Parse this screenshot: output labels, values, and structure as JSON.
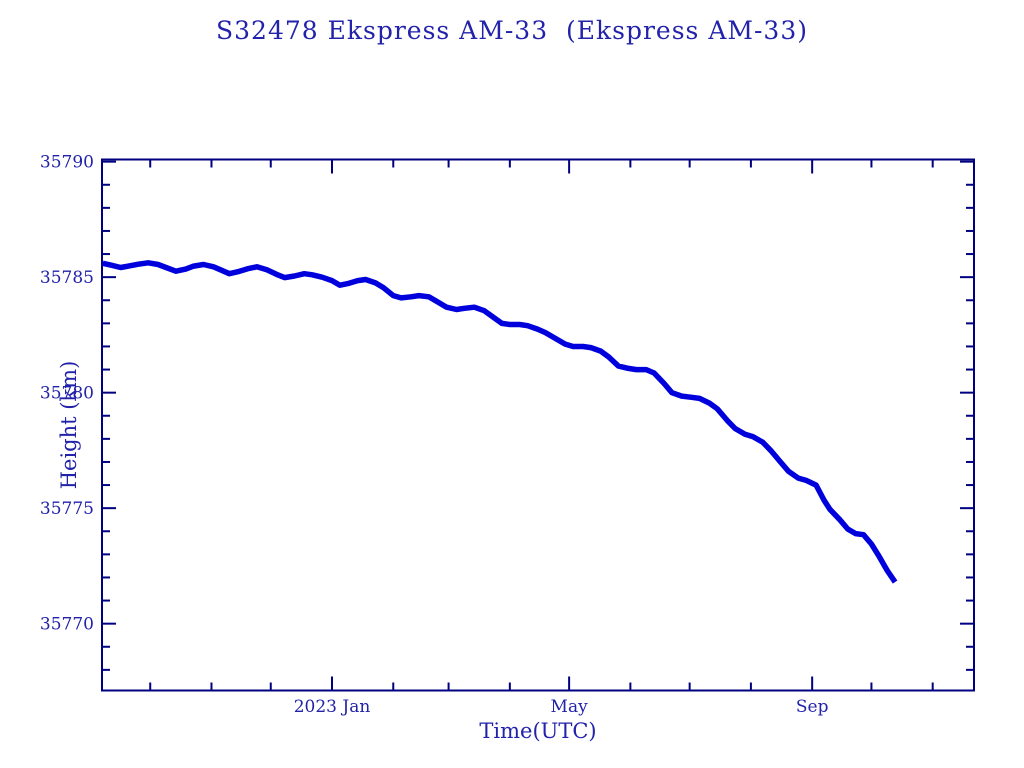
{
  "page": {
    "background": "#ffffff"
  },
  "colors": {
    "axis": "#000080",
    "labels": "#2222aa",
    "data": "#0000dd"
  },
  "chart_data": {
    "type": "scatter",
    "title": "S32478 Ekspress AM-33  (Ekspress AM-33)",
    "xlabel": "Time(UTC)",
    "ylabel": "Height (km)",
    "legend": "none",
    "grid": false,
    "x_unit": "days_from_2023-01-01",
    "x_range": [
      -115.9,
      324.4
    ],
    "y_range": [
      35767.15,
      35790.05
    ],
    "y_major_ticks": [
      {
        "v": 35770,
        "label": "35770"
      },
      {
        "v": 35775,
        "label": "35775"
      },
      {
        "v": 35780,
        "label": "35780"
      },
      {
        "v": 35785,
        "label": "35785"
      },
      {
        "v": 35790,
        "label": "35790"
      }
    ],
    "y_minor_ticks": [
      35768,
      35769,
      35771,
      35772,
      35773,
      35774,
      35776,
      35777,
      35778,
      35779,
      35781,
      35782,
      35783,
      35784,
      35786,
      35787,
      35788,
      35789
    ],
    "x_major_ticks": [
      {
        "t": 0,
        "label": "2023 Jan"
      },
      {
        "t": 120,
        "label": "May"
      },
      {
        "t": 243,
        "label": "Sep"
      }
    ],
    "x_minor_ticks": [
      -92,
      -61,
      -31,
      31,
      59,
      90,
      151,
      181,
      212,
      273,
      304
    ],
    "series": [
      {
        "name": "height",
        "color": "#0000dd",
        "x": [
          -116,
          -112,
          -107,
          -103,
          -98,
          -93,
          -88,
          -84,
          -79,
          -74,
          -70,
          -65,
          -60,
          -56,
          -52,
          -47,
          -42,
          -38,
          -33,
          -28,
          -24,
          -19,
          -14,
          -10,
          -5,
          0,
          4,
          8,
          13,
          17,
          22,
          26,
          31,
          35,
          40,
          44,
          49,
          53,
          58,
          63,
          67,
          72,
          77,
          81,
          86,
          90,
          95,
          99,
          104,
          108,
          113,
          118,
          122,
          127,
          131,
          136,
          140,
          145,
          150,
          154,
          159,
          163,
          168,
          172,
          177,
          182,
          186,
          191,
          195,
          200,
          204,
          209,
          213,
          218,
          222,
          227,
          231,
          236,
          240,
          245,
          249,
          252,
          257,
          261,
          265,
          269,
          273,
          277,
          281,
          285
        ],
        "y": [
          35785.6,
          35785.52,
          35785.42,
          35785.48,
          35785.56,
          35785.62,
          35785.55,
          35785.42,
          35785.26,
          35785.35,
          35785.48,
          35785.55,
          35785.45,
          35785.3,
          35785.15,
          35785.25,
          35785.38,
          35785.45,
          35785.32,
          35785.12,
          35784.98,
          35785.05,
          35785.15,
          35785.1,
          35785.0,
          35784.85,
          35784.65,
          35784.72,
          35784.85,
          35784.9,
          35784.75,
          35784.55,
          35784.2,
          35784.1,
          35784.15,
          35784.2,
          35784.15,
          35783.95,
          35783.7,
          35783.6,
          35783.65,
          35783.7,
          35783.55,
          35783.3,
          35783.0,
          35782.95,
          35782.95,
          35782.9,
          35782.75,
          35782.6,
          35782.35,
          35782.1,
          35782.0,
          35782.0,
          35781.95,
          35781.8,
          35781.55,
          35781.15,
          35781.05,
          35781.0,
          35781.0,
          35780.85,
          35780.4,
          35780.0,
          35779.85,
          35779.8,
          35779.75,
          35779.55,
          35779.3,
          35778.8,
          35778.45,
          35778.2,
          35778.1,
          35777.85,
          35777.5,
          35777.0,
          35776.6,
          35776.3,
          35776.2,
          35776.0,
          35775.35,
          35774.95,
          35774.5,
          35774.1,
          35773.9,
          35773.85,
          35773.45,
          35772.9,
          35772.3,
          35771.8
        ]
      }
    ]
  }
}
